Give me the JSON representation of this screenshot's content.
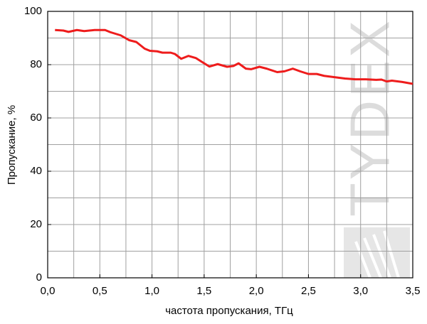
{
  "chart_data": {
    "type": "line",
    "xlabel": "частота пропускания, ТГц",
    "ylabel": "Пропускание, %",
    "watermark": "TYDEX",
    "x": [
      0.07,
      0.15,
      0.2,
      0.28,
      0.35,
      0.45,
      0.55,
      0.6,
      0.7,
      0.78,
      0.85,
      0.93,
      0.98,
      1.05,
      1.1,
      1.18,
      1.22,
      1.28,
      1.35,
      1.42,
      1.48,
      1.55,
      1.63,
      1.72,
      1.78,
      1.83,
      1.9,
      1.95,
      2.03,
      2.1,
      2.2,
      2.27,
      2.35,
      2.42,
      2.5,
      2.58,
      2.65,
      2.75,
      2.85,
      2.95,
      3.05,
      3.15,
      3.2,
      3.25,
      3.3,
      3.4,
      3.5
    ],
    "series": [
      {
        "color": "#ee1c1c",
        "values": [
          93,
          92.8,
          92.3,
          93,
          92.6,
          93,
          93,
          92.2,
          91,
          89.2,
          88.5,
          86,
          85.2,
          85,
          84.5,
          84.5,
          84,
          82.2,
          83.3,
          82.5,
          81,
          79.3,
          80.2,
          79.2,
          79.5,
          80.5,
          78.5,
          78.3,
          79.2,
          78.5,
          77.2,
          77.5,
          78.5,
          77.5,
          76.5,
          76.5,
          75.8,
          75.3,
          74.8,
          74.5,
          74.5,
          74.3,
          74.4,
          73.7,
          74,
          73.5,
          72.8
        ]
      }
    ],
    "xlim": [
      0,
      3.5
    ],
    "ylim": [
      0,
      100
    ],
    "xticks": [
      {
        "value": 0,
        "label": "0,0"
      },
      {
        "value": 0.5,
        "label": "0,5"
      },
      {
        "value": 1,
        "label": "1,0"
      },
      {
        "value": 1.5,
        "label": "1,5"
      },
      {
        "value": 2,
        "label": "2,0"
      },
      {
        "value": 2.5,
        "label": "2,5"
      },
      {
        "value": 3,
        "label": "3,0"
      },
      {
        "value": 3.5,
        "label": "3,5"
      }
    ],
    "yticks": [
      0,
      20,
      40,
      60,
      80,
      100
    ],
    "grid": true,
    "minor_grid": true
  }
}
